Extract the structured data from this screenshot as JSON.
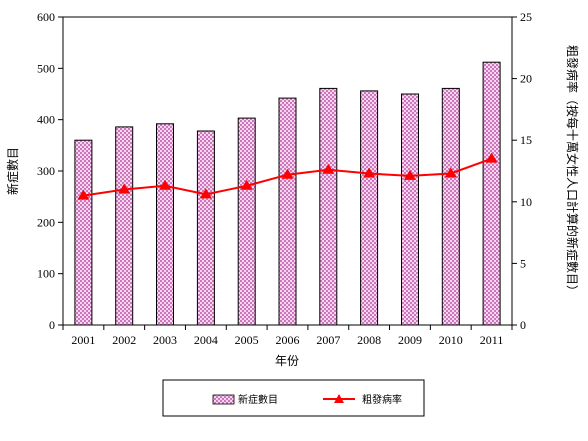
{
  "chart_data": {
    "type": "bar+line",
    "categories": [
      "2001",
      "2002",
      "2003",
      "2004",
      "2005",
      "2006",
      "2007",
      "2008",
      "2009",
      "2010",
      "2011"
    ],
    "series": [
      {
        "name": "新症數目",
        "type": "bar",
        "axis": "left",
        "values": [
          360,
          386,
          392,
          378,
          403,
          442,
          461,
          456,
          450,
          461,
          512
        ]
      },
      {
        "name": "粗發病率",
        "type": "line",
        "axis": "right",
        "values": [
          10.5,
          11.0,
          11.3,
          10.6,
          11.3,
          12.2,
          12.6,
          12.3,
          12.1,
          12.3,
          13.5
        ]
      }
    ],
    "xlabel": "年份",
    "ylabel_left": "新症數目",
    "ylabel_right": "粗發病率（按每十萬女性人口計算的新症數目）",
    "ylim_left": [
      0,
      600
    ],
    "ylim_right": [
      0,
      25
    ],
    "yticks_left": [
      0,
      100,
      200,
      300,
      400,
      500,
      600
    ],
    "yticks_right": [
      0,
      5,
      10,
      15,
      20,
      25
    ],
    "legend_placement": "bottom",
    "colors": {
      "bar_fill": "#f6d5ee",
      "bar_pattern": "#cc77bb",
      "line": "#ff0000"
    },
    "grid": false
  }
}
